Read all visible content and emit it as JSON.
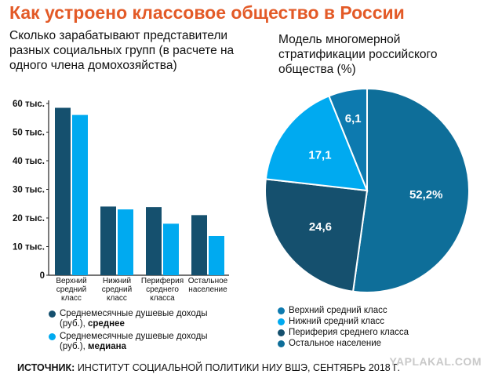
{
  "header": {
    "title": "Как устроено классовое общество в России",
    "left_subtitle": "Сколько зарабатывают представители разных социальных групп (в расчете на одного члена домохозяйства)",
    "right_subtitle": "Модель многомерной стратификации российского общества (%)"
  },
  "chart_data": [
    {
      "type": "bar",
      "title": "Сколько зарабатывают представители разных социальных групп (в расчете на одного члена домохозяйства)",
      "categories": [
        [
          "Верхний",
          "средний",
          "класс"
        ],
        [
          "Нижний",
          "средний",
          "класс"
        ],
        [
          "Периферия",
          "среднего",
          "класса"
        ],
        [
          "Остальное",
          "население"
        ]
      ],
      "series": [
        {
          "name": "Среднемесячные душевые доходы (руб.), среднее",
          "color": "#15506e",
          "values": [
            58500,
            24000,
            23800,
            21000
          ]
        },
        {
          "name": "Среднемесячные душевые доходы (руб.), медиана",
          "color": "#00aaf0",
          "values": [
            56000,
            23000,
            18000,
            13700
          ]
        }
      ],
      "ylim": [
        0,
        60000
      ],
      "yticks": [
        0,
        10000,
        20000,
        30000,
        40000,
        50000,
        60000
      ],
      "ytick_labels": [
        "0",
        "10 тыс.",
        "20 тыс.",
        "30 тыс.",
        "40 тыс.",
        "50 тыс.",
        "60 тыс."
      ],
      "grid": false,
      "legend_position": "bottom"
    },
    {
      "type": "pie",
      "title": "Модель многомерной стратификации российского общества (%)",
      "slices": [
        {
          "label": "Верхний средний класс",
          "value": 6.1,
          "display": "6,1",
          "color": "#0d7aaf"
        },
        {
          "label": "Нижний средний класс",
          "value": 17.1,
          "display": "17,1",
          "color": "#00aaf0"
        },
        {
          "label": "Периферия среднего класса",
          "value": 24.6,
          "display": "24,6",
          "color": "#15506e"
        },
        {
          "label": "Остальное население",
          "value": 52.2,
          "display": "52,2%",
          "color": "#0e6e99"
        }
      ],
      "legend_position": "bottom"
    }
  ],
  "legend_left": [
    {
      "text": "Среднемесячные душевые доходы (руб.),",
      "bold": "среднее",
      "color": "#15506e"
    },
    {
      "text": "Среднемесячные душевые доходы (руб.),",
      "bold": "медиана",
      "color": "#00aaf0"
    }
  ],
  "source": {
    "label": "ИСТОЧНИК:",
    "text": " ИНСТИТУТ СОЦИАЛЬНОЙ ПОЛИТИКИ НИУ ВШЭ, СЕНТЯБРЬ 2018 Г."
  },
  "watermark": "YAPLAKAL.COM"
}
